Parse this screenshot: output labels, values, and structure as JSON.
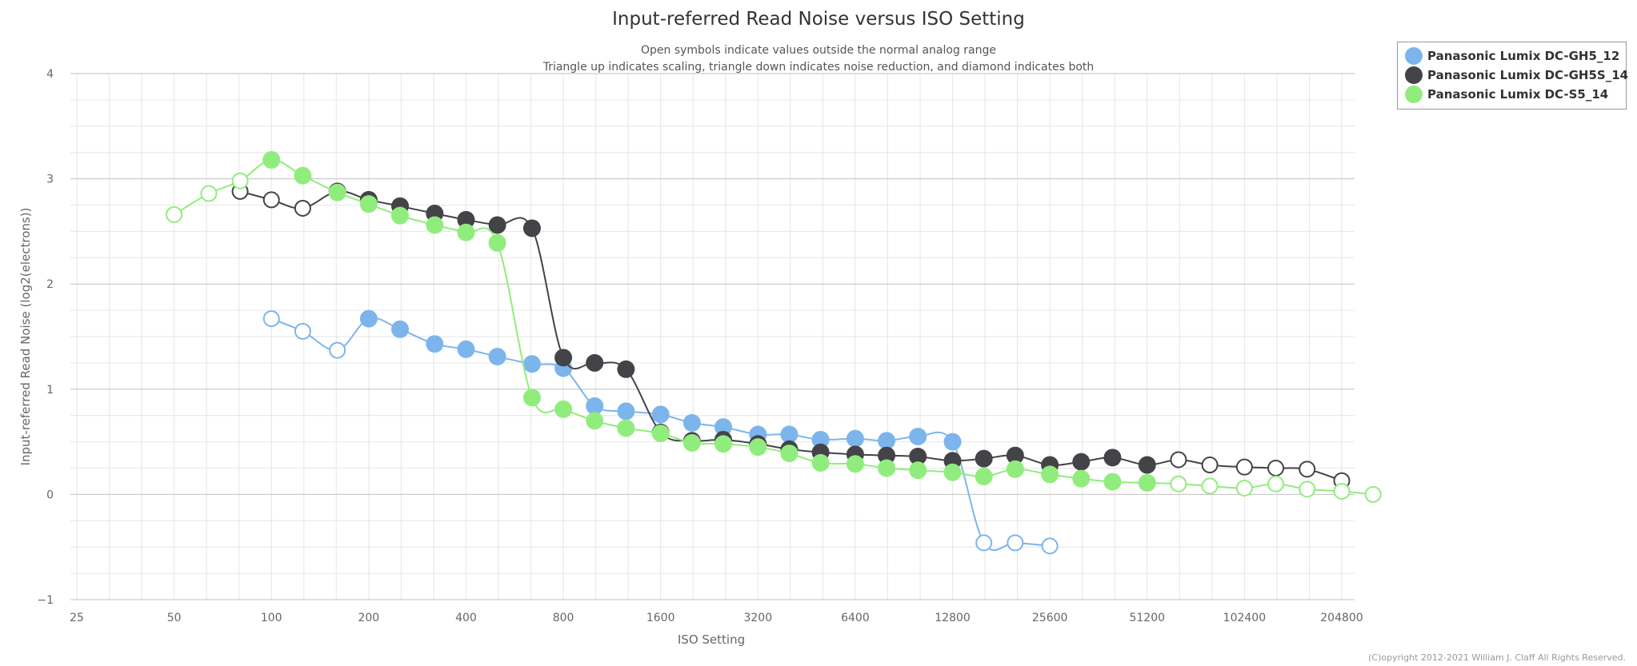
{
  "chart_data": {
    "type": "line",
    "title": "Input-referred Read Noise versus ISO Setting",
    "subtitle_lines": [
      "Open symbols indicate values outside the normal analog range",
      "Triangle up indicates scaling, triangle down indicates noise reduction, and diamond indicates both"
    ],
    "xlabel": "ISO Setting",
    "ylabel": "Input-referred Read Noise (log2(electrons))",
    "x_scale": "log2",
    "xlim": [
      25,
      204800
    ],
    "ylim": [
      -1,
      4
    ],
    "x_ticks": [
      25,
      50,
      100,
      200,
      400,
      800,
      1600,
      3200,
      6400,
      12800,
      25600,
      51200,
      102400,
      204800
    ],
    "x_tick_labels": [
      "25",
      "50",
      "100",
      "200",
      "400",
      "800",
      "1600",
      "3200",
      "6400",
      "12800",
      "25600",
      "51200",
      "102400",
      "204800"
    ],
    "y_ticks": [
      -1,
      0,
      1,
      2,
      3,
      4
    ],
    "y_tick_labels": [
      "−1",
      "0",
      "1",
      "2",
      "3",
      "4"
    ],
    "legend_position": "top-right",
    "copyright": "(C)opyright 2012-2021 William J. Claff All Rights Reserved.",
    "series": [
      {
        "name": "Panasonic Lumix DC-GH5_12",
        "color": "#7cb5ec",
        "points": [
          {
            "iso": 100,
            "value": 1.67,
            "open": true
          },
          {
            "iso": 125,
            "value": 1.55,
            "open": true
          },
          {
            "iso": 160,
            "value": 1.37,
            "open": true
          },
          {
            "iso": 200,
            "value": 1.67,
            "open": false
          },
          {
            "iso": 250,
            "value": 1.57,
            "open": false
          },
          {
            "iso": 320,
            "value": 1.43,
            "open": false
          },
          {
            "iso": 400,
            "value": 1.38,
            "open": false
          },
          {
            "iso": 500,
            "value": 1.31,
            "open": false
          },
          {
            "iso": 640,
            "value": 1.24,
            "open": false
          },
          {
            "iso": 800,
            "value": 1.2,
            "open": false
          },
          {
            "iso": 1000,
            "value": 0.84,
            "open": false
          },
          {
            "iso": 1250,
            "value": 0.79,
            "open": false
          },
          {
            "iso": 1600,
            "value": 0.76,
            "open": false
          },
          {
            "iso": 2000,
            "value": 0.68,
            "open": false
          },
          {
            "iso": 2500,
            "value": 0.64,
            "open": false
          },
          {
            "iso": 3200,
            "value": 0.57,
            "open": false
          },
          {
            "iso": 4000,
            "value": 0.57,
            "open": false
          },
          {
            "iso": 5000,
            "value": 0.52,
            "open": false
          },
          {
            "iso": 6400,
            "value": 0.53,
            "open": false
          },
          {
            "iso": 8000,
            "value": 0.51,
            "open": false
          },
          {
            "iso": 10000,
            "value": 0.55,
            "open": false
          },
          {
            "iso": 12800,
            "value": 0.5,
            "open": false
          },
          {
            "iso": 16000,
            "value": -0.46,
            "open": true
          },
          {
            "iso": 20000,
            "value": -0.46,
            "open": true
          },
          {
            "iso": 25600,
            "value": -0.49,
            "open": true
          }
        ]
      },
      {
        "name": "Panasonic Lumix DC-GH5S_14",
        "color": "#434348",
        "points": [
          {
            "iso": 80,
            "value": 2.88,
            "open": true
          },
          {
            "iso": 100,
            "value": 2.8,
            "open": true
          },
          {
            "iso": 125,
            "value": 2.72,
            "open": true
          },
          {
            "iso": 160,
            "value": 2.88,
            "open": false
          },
          {
            "iso": 200,
            "value": 2.8,
            "open": false
          },
          {
            "iso": 250,
            "value": 2.74,
            "open": false
          },
          {
            "iso": 320,
            "value": 2.67,
            "open": false
          },
          {
            "iso": 400,
            "value": 2.61,
            "open": false
          },
          {
            "iso": 500,
            "value": 2.56,
            "open": false
          },
          {
            "iso": 640,
            "value": 2.53,
            "open": false
          },
          {
            "iso": 800,
            "value": 1.3,
            "open": false
          },
          {
            "iso": 1000,
            "value": 1.25,
            "open": false
          },
          {
            "iso": 1250,
            "value": 1.19,
            "open": false
          },
          {
            "iso": 1600,
            "value": 0.59,
            "open": false
          },
          {
            "iso": 2000,
            "value": 0.51,
            "open": false
          },
          {
            "iso": 2500,
            "value": 0.52,
            "open": false
          },
          {
            "iso": 3200,
            "value": 0.48,
            "open": false
          },
          {
            "iso": 4000,
            "value": 0.43,
            "open": false
          },
          {
            "iso": 5000,
            "value": 0.4,
            "open": false
          },
          {
            "iso": 6400,
            "value": 0.38,
            "open": false
          },
          {
            "iso": 8000,
            "value": 0.37,
            "open": false
          },
          {
            "iso": 10000,
            "value": 0.36,
            "open": false
          },
          {
            "iso": 12800,
            "value": 0.32,
            "open": false
          },
          {
            "iso": 16000,
            "value": 0.34,
            "open": false
          },
          {
            "iso": 20000,
            "value": 0.37,
            "open": false
          },
          {
            "iso": 25600,
            "value": 0.28,
            "open": false
          },
          {
            "iso": 32000,
            "value": 0.31,
            "open": false
          },
          {
            "iso": 40000,
            "value": 0.35,
            "open": false
          },
          {
            "iso": 51200,
            "value": 0.28,
            "open": false
          },
          {
            "iso": 64000,
            "value": 0.33,
            "open": true
          },
          {
            "iso": 80000,
            "value": 0.28,
            "open": true
          },
          {
            "iso": 102400,
            "value": 0.26,
            "open": true
          },
          {
            "iso": 128000,
            "value": 0.25,
            "open": true
          },
          {
            "iso": 160000,
            "value": 0.24,
            "open": true
          },
          {
            "iso": 204800,
            "value": 0.13,
            "open": true
          }
        ]
      },
      {
        "name": "Panasonic Lumix DC-S5_14",
        "color": "#90ed7d",
        "points": [
          {
            "iso": 50,
            "value": 2.66,
            "open": true
          },
          {
            "iso": 64,
            "value": 2.86,
            "open": true
          },
          {
            "iso": 80,
            "value": 2.98,
            "open": true
          },
          {
            "iso": 100,
            "value": 3.18,
            "open": false
          },
          {
            "iso": 125,
            "value": 3.03,
            "open": false
          },
          {
            "iso": 160,
            "value": 2.87,
            "open": false
          },
          {
            "iso": 200,
            "value": 2.76,
            "open": false
          },
          {
            "iso": 250,
            "value": 2.65,
            "open": false
          },
          {
            "iso": 320,
            "value": 2.56,
            "open": false
          },
          {
            "iso": 400,
            "value": 2.49,
            "open": false
          },
          {
            "iso": 500,
            "value": 2.39,
            "open": false
          },
          {
            "iso": 640,
            "value": 0.92,
            "open": false
          },
          {
            "iso": 800,
            "value": 0.81,
            "open": false
          },
          {
            "iso": 1000,
            "value": 0.7,
            "open": false
          },
          {
            "iso": 1250,
            "value": 0.63,
            "open": false
          },
          {
            "iso": 1600,
            "value": 0.58,
            "open": false
          },
          {
            "iso": 2000,
            "value": 0.49,
            "open": false
          },
          {
            "iso": 2500,
            "value": 0.48,
            "open": false
          },
          {
            "iso": 3200,
            "value": 0.45,
            "open": false
          },
          {
            "iso": 4000,
            "value": 0.39,
            "open": false
          },
          {
            "iso": 5000,
            "value": 0.3,
            "open": false
          },
          {
            "iso": 6400,
            "value": 0.29,
            "open": false
          },
          {
            "iso": 8000,
            "value": 0.25,
            "open": false
          },
          {
            "iso": 10000,
            "value": 0.23,
            "open": false
          },
          {
            "iso": 12800,
            "value": 0.21,
            "open": false
          },
          {
            "iso": 16000,
            "value": 0.17,
            "open": false
          },
          {
            "iso": 20000,
            "value": 0.24,
            "open": false
          },
          {
            "iso": 25600,
            "value": 0.19,
            "open": false
          },
          {
            "iso": 32000,
            "value": 0.15,
            "open": false
          },
          {
            "iso": 40000,
            "value": 0.12,
            "open": false
          },
          {
            "iso": 51200,
            "value": 0.11,
            "open": false
          },
          {
            "iso": 64000,
            "value": 0.1,
            "open": true
          },
          {
            "iso": 80000,
            "value": 0.08,
            "open": true
          },
          {
            "iso": 102400,
            "value": 0.06,
            "open": true
          },
          {
            "iso": 128000,
            "value": 0.1,
            "open": true
          },
          {
            "iso": 160000,
            "value": 0.05,
            "open": true
          },
          {
            "iso": 204800,
            "value": 0.03,
            "open": true
          },
          {
            "iso": 256000,
            "value": 0.0,
            "open": true
          }
        ]
      }
    ]
  }
}
